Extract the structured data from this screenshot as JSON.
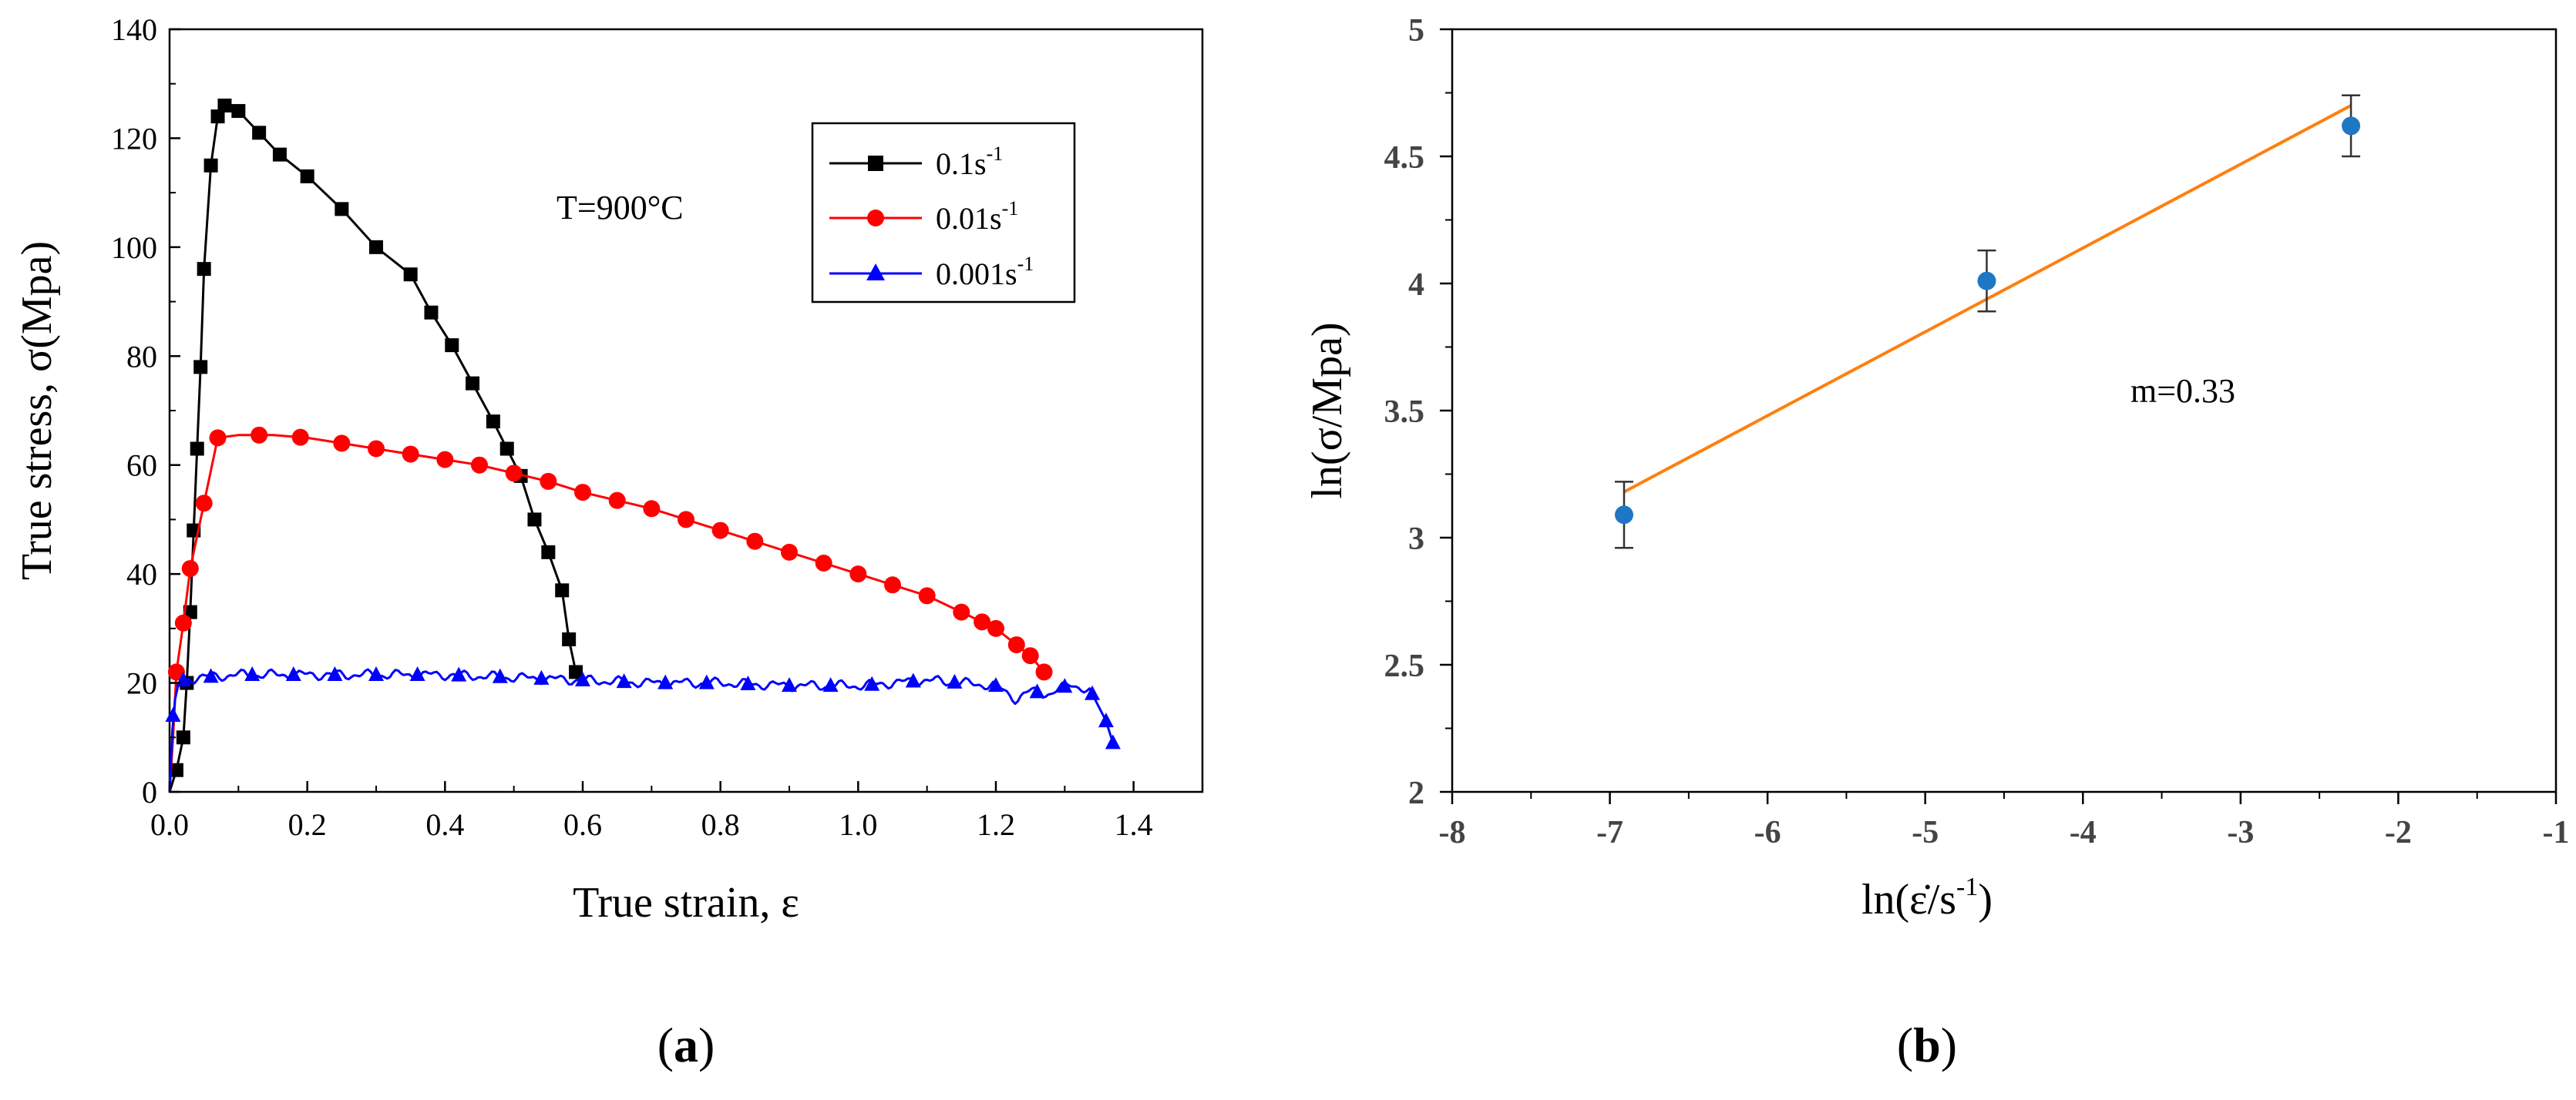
{
  "chart_data": [
    {
      "type": "line",
      "panel_label": "a",
      "xlabel": "True strain, ε",
      "ylabel": "True stress, σ(Mpa)",
      "xlim": [
        0,
        1.5
      ],
      "ylim": [
        0,
        140
      ],
      "xticks": [
        "0.0",
        "0.2",
        "0.4",
        "0.6",
        "0.8",
        "1.0",
        "1.2",
        "1.4"
      ],
      "yticks": [
        "0",
        "20",
        "40",
        "60",
        "80",
        "100",
        "120",
        "140"
      ],
      "annotation": "T=900°C",
      "legend_position": "top-right",
      "series": [
        {
          "name": "0.1s",
          "sup": "-1",
          "color": "#000000",
          "marker": "square",
          "x": [
            0.0,
            0.01,
            0.02,
            0.025,
            0.03,
            0.035,
            0.04,
            0.045,
            0.05,
            0.06,
            0.07,
            0.08,
            0.1,
            0.13,
            0.16,
            0.2,
            0.25,
            0.3,
            0.35,
            0.38,
            0.41,
            0.44,
            0.47,
            0.49,
            0.51,
            0.53,
            0.55,
            0.57,
            0.58,
            0.59
          ],
          "y": [
            0,
            4,
            10,
            20,
            33,
            48,
            63,
            78,
            96,
            115,
            124,
            126,
            125,
            121,
            117,
            113,
            107,
            100,
            95,
            88,
            82,
            75,
            68,
            63,
            58,
            50,
            44,
            37,
            28,
            22
          ],
          "marker_x": [
            0.01,
            0.02,
            0.025,
            0.03,
            0.035,
            0.04,
            0.045,
            0.05,
            0.06,
            0.07,
            0.08,
            0.1,
            0.13,
            0.16,
            0.2,
            0.25,
            0.3,
            0.35,
            0.38,
            0.41,
            0.44,
            0.47,
            0.49,
            0.51,
            0.53,
            0.55,
            0.57,
            0.58,
            0.59
          ]
        },
        {
          "name": "0.01s",
          "sup": "-1",
          "color": "#ff0000",
          "marker": "circle",
          "x": [
            0.0,
            0.005,
            0.01,
            0.02,
            0.03,
            0.05,
            0.07,
            0.1,
            0.15,
            0.2,
            0.25,
            0.3,
            0.35,
            0.4,
            0.45,
            0.5,
            0.55,
            0.6,
            0.65,
            0.7,
            0.75,
            0.8,
            0.85,
            0.9,
            0.95,
            1.0,
            1.05,
            1.1,
            1.15,
            1.2,
            1.23,
            1.25,
            1.27
          ],
          "y": [
            0,
            10,
            22,
            31,
            41,
            53,
            65,
            65.5,
            65.5,
            65,
            64,
            63,
            62,
            61,
            60,
            58.5,
            57,
            55,
            53.5,
            52,
            50,
            48,
            46,
            44,
            42,
            40,
            38,
            36,
            33,
            30,
            27,
            25,
            22
          ],
          "marker_x": [
            0.01,
            0.02,
            0.03,
            0.05,
            0.07,
            0.13,
            0.19,
            0.25,
            0.3,
            0.35,
            0.4,
            0.45,
            0.5,
            0.55,
            0.6,
            0.65,
            0.7,
            0.75,
            0.8,
            0.85,
            0.9,
            0.95,
            1.0,
            1.05,
            1.1,
            1.15,
            1.18,
            1.2,
            1.23,
            1.25,
            1.27
          ]
        },
        {
          "name": "0.001s",
          "sup": "-1",
          "color": "#0000ff",
          "marker": "triangle",
          "x": [
            0.0,
            0.005,
            0.01,
            0.02,
            0.04,
            0.1,
            0.2,
            0.3,
            0.4,
            0.5,
            0.6,
            0.7,
            0.8,
            0.9,
            1.0,
            1.1,
            1.2,
            1.23,
            1.25,
            1.28,
            1.31,
            1.34,
            1.36,
            1.37
          ],
          "y": [
            0,
            14,
            19,
            20.5,
            21,
            21.5,
            21.5,
            21.5,
            21.5,
            21,
            20.5,
            20,
            20,
            19.5,
            19.5,
            20.5,
            19.5,
            17,
            18.5,
            18,
            20,
            18,
            13,
            9
          ],
          "marker_x": [
            0.005,
            0.02,
            0.06,
            0.12,
            0.18,
            0.24,
            0.3,
            0.36,
            0.42,
            0.48,
            0.54,
            0.6,
            0.66,
            0.72,
            0.78,
            0.84,
            0.9,
            0.96,
            1.02,
            1.08,
            1.14,
            1.2,
            1.26,
            1.3,
            1.34,
            1.36,
            1.37
          ]
        }
      ]
    },
    {
      "type": "scatter",
      "panel_label": "b",
      "xlabel": "ln(ε̇/s",
      "xlabel_sup": "-1",
      "xlabel_end": ")",
      "ylabel": "ln(σ/Mpa)",
      "xlim": [
        -8,
        -1
      ],
      "ylim": [
        2,
        5
      ],
      "xticks": [
        "-8",
        "-7",
        "-6",
        "-5",
        "-4",
        "-3",
        "-2",
        "-1"
      ],
      "yticks": [
        "2",
        "2.5",
        "3",
        "3.5",
        "4",
        "4.5",
        "5"
      ],
      "annotation": "m=0.33",
      "points": {
        "x": [
          -6.91,
          -4.61,
          -2.3
        ],
        "y": [
          3.09,
          4.01,
          4.62
        ],
        "err": [
          0.13,
          0.12,
          0.12
        ],
        "color": "#1f77c4"
      },
      "fit": {
        "x": [
          -6.91,
          -2.3
        ],
        "y": [
          3.18,
          4.7
        ],
        "color": "#ff7f0e",
        "slope": 0.33
      }
    }
  ]
}
